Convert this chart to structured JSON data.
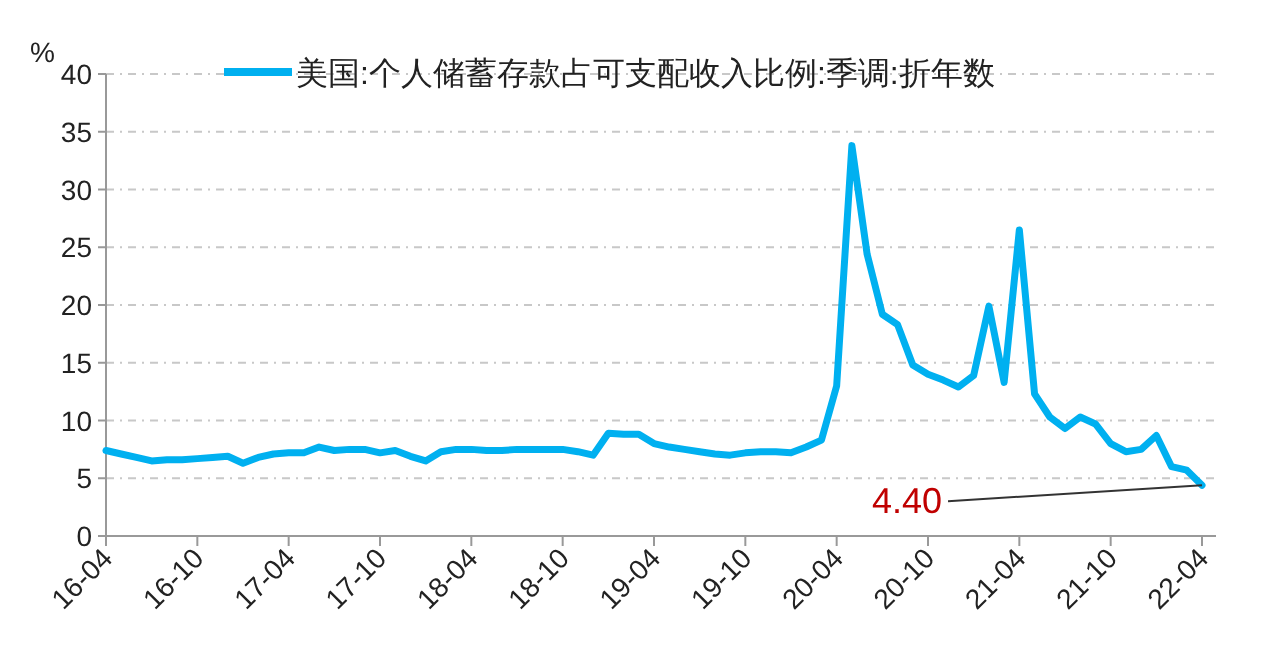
{
  "chart_data": {
    "type": "line",
    "ylabel": "%",
    "categories": [
      "16-04",
      null,
      null,
      null,
      null,
      null,
      "16-10",
      null,
      null,
      null,
      null,
      null,
      "17-04",
      null,
      null,
      null,
      null,
      null,
      "17-10",
      null,
      null,
      null,
      null,
      null,
      "18-04",
      null,
      null,
      null,
      null,
      null,
      "18-10",
      null,
      null,
      null,
      null,
      null,
      "19-04",
      null,
      null,
      null,
      null,
      null,
      "19-10",
      null,
      null,
      null,
      null,
      null,
      "20-04",
      null,
      null,
      null,
      null,
      null,
      "20-10",
      null,
      null,
      null,
      null,
      null,
      "21-04",
      null,
      null,
      null,
      null,
      null,
      "21-10",
      null,
      null,
      null,
      null,
      null,
      "22-04"
    ],
    "series": [
      {
        "name": "美国:个人储蓄存款占可支配收入比例:季调:折年数",
        "color": "#00b0f0",
        "values": [
          7.4,
          7.1,
          6.8,
          6.5,
          6.6,
          6.6,
          6.7,
          6.8,
          6.9,
          6.3,
          6.8,
          7.1,
          7.2,
          7.2,
          7.7,
          7.4,
          7.5,
          7.5,
          7.2,
          7.4,
          6.9,
          6.5,
          7.3,
          7.5,
          7.5,
          7.4,
          7.4,
          7.5,
          7.5,
          7.5,
          7.5,
          7.3,
          7.0,
          8.9,
          8.8,
          8.8,
          8.0,
          7.7,
          7.5,
          7.3,
          7.1,
          7.0,
          7.2,
          7.3,
          7.3,
          7.2,
          7.7,
          8.3,
          13.0,
          33.8,
          24.4,
          19.2,
          18.3,
          14.8,
          14.0,
          13.5,
          12.9,
          13.9,
          19.9,
          13.3,
          26.5,
          12.3,
          10.3,
          9.3,
          10.3,
          9.7,
          8.0,
          7.3,
          7.5,
          8.7,
          6.0,
          5.7,
          4.4
        ]
      }
    ],
    "ylim": [
      0,
      40
    ],
    "yticks": [
      0,
      5,
      10,
      15,
      20,
      25,
      30,
      35,
      40
    ],
    "grid": "y",
    "legend": "top",
    "marker": "none",
    "line_style": "solid",
    "annotations": [
      {
        "text": "4.40",
        "x": "22-04",
        "y": 4.4
      }
    ]
  }
}
